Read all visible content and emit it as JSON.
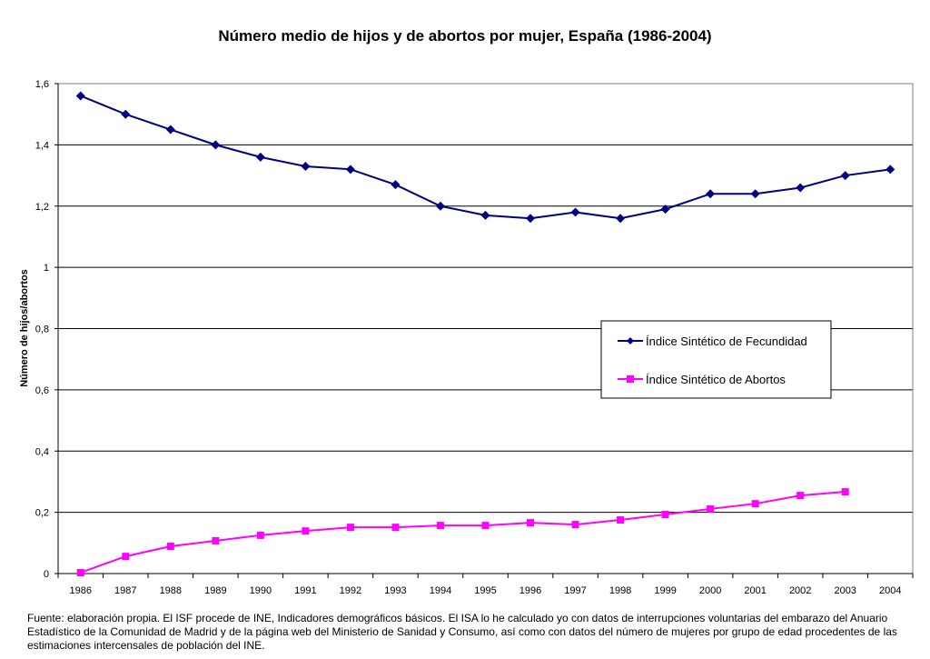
{
  "chart_data": {
    "type": "line",
    "title": "Número medio de hijos y de abortos por mujer, España (1986-2004)",
    "xlabel": "",
    "ylabel": "Número de hijos/abortos",
    "ylim": [
      0,
      1.6
    ],
    "yticks": [
      0,
      0.2,
      0.4,
      0.6,
      0.8,
      1,
      1.2,
      1.4,
      1.6
    ],
    "ytick_labels": [
      "0",
      "0,2",
      "0,4",
      "0,6",
      "0,8",
      "1",
      "1,2",
      "1,4",
      "1,6"
    ],
    "grid": true,
    "legend_position": "center-right",
    "categories": [
      "1986",
      "1987",
      "1988",
      "1989",
      "1990",
      "1991",
      "1992",
      "1993",
      "1994",
      "1995",
      "1996",
      "1997",
      "1998",
      "1999",
      "2000",
      "2001",
      "2002",
      "2003",
      "2004"
    ],
    "series": [
      {
        "name": "Índice Sintético de Fecundidad",
        "color": "#000080",
        "marker": "diamond",
        "values": [
          1.56,
          1.5,
          1.45,
          1.4,
          1.36,
          1.33,
          1.32,
          1.27,
          1.2,
          1.17,
          1.16,
          1.18,
          1.16,
          1.19,
          1.24,
          1.24,
          1.26,
          1.3,
          1.32
        ]
      },
      {
        "name": "Índice Sintético de Abortos",
        "color": "#FF00FF",
        "marker": "square",
        "values": [
          0.003,
          0.056,
          0.089,
          0.107,
          0.125,
          0.139,
          0.151,
          0.151,
          0.157,
          0.157,
          0.166,
          0.16,
          0.175,
          0.193,
          0.211,
          0.228,
          0.255,
          0.267,
          null
        ]
      }
    ]
  },
  "footnote": "Fuente: elaboración propia. El ISF procede de INE, Indicadores demográficos básicos. El ISA lo he calculado yo con datos de interrupciones voluntarias del embarazo del Anuario Estadístico de la Comunidad de Madrid  y de la página web del Ministerio de Sanidad y Consumo, así como con datos del número de mujeres por grupo de edad procedentes de las estimaciones intercensales de población del INE."
}
